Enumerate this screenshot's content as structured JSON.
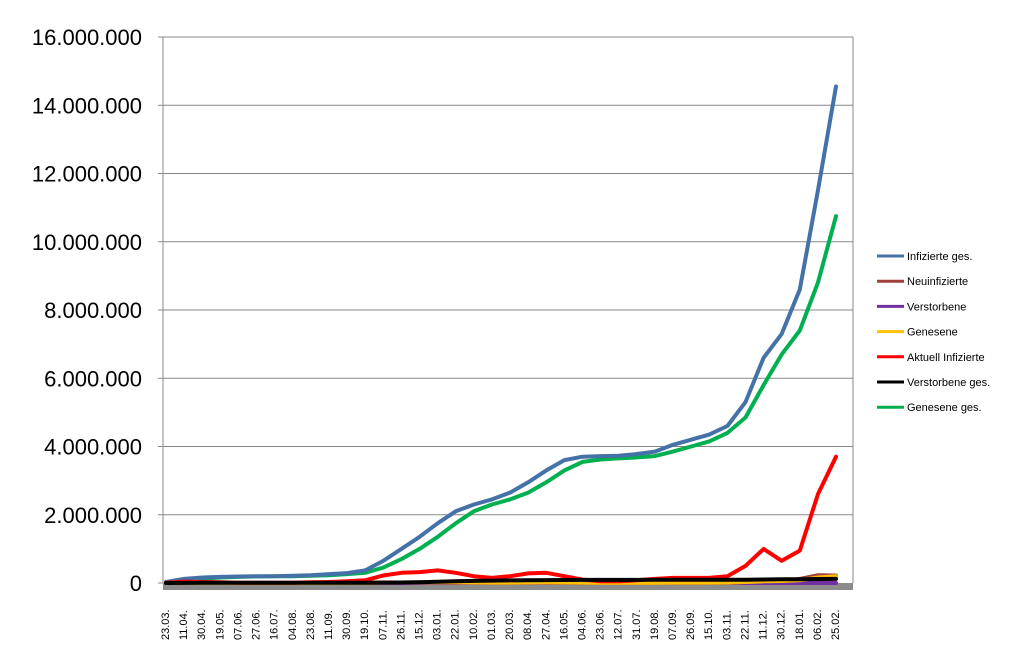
{
  "chart_data": {
    "type": "line",
    "title": "",
    "xlabel": "",
    "ylabel": "",
    "ylim": [
      0,
      16000000
    ],
    "yticks": [
      "0",
      "2.000.000",
      "4.000.000",
      "6.000.000",
      "8.000.000",
      "10.000.000",
      "12.000.000",
      "14.000.000",
      "16.000.000"
    ],
    "grid": "horizontal",
    "legend_position": "right",
    "categories": [
      "23.03.",
      "11.04.",
      "30.04.",
      "19.05.",
      "07.06.",
      "27.06.",
      "16.07.",
      "04.08.",
      "23.08.",
      "11.09.",
      "30.09.",
      "19.10.",
      "07.11.",
      "26.11.",
      "15.12.",
      "03.01.",
      "22.01.",
      "10.02.",
      "01.03.",
      "20.03.",
      "08.04.",
      "27.04.",
      "16.05.",
      "04.06.",
      "23.06.",
      "12.07.",
      "31.07.",
      "19.08.",
      "07.09.",
      "26.09.",
      "15.10.",
      "03.11.",
      "22.11.",
      "11.12.",
      "30.12.",
      "18.01.",
      "06.02.",
      "25.02."
    ],
    "series": [
      {
        "name": "Infizierte ges.",
        "color": "#4472A8",
        "values": [
          30000,
          120000,
          160000,
          180000,
          190000,
          200000,
          200000,
          210000,
          230000,
          260000,
          290000,
          370000,
          650000,
          1000000,
          1350000,
          1750000,
          2100000,
          2300000,
          2450000,
          2650000,
          2950000,
          3300000,
          3600000,
          3700000,
          3720000,
          3730000,
          3780000,
          3850000,
          4050000,
          4200000,
          4350000,
          4600000,
          5300000,
          6600000,
          7300000,
          8600000,
          11500000,
          14550000
        ]
      },
      {
        "name": "Neuinfizierte",
        "color": "#A0403A",
        "values": [
          3000,
          3000,
          1000,
          500,
          300,
          400,
          500,
          800,
          1200,
          1500,
          2500,
          8000,
          18000,
          15000,
          20000,
          15000,
          10000,
          8000,
          9000,
          15000,
          18000,
          15000,
          8000,
          3000,
          1000,
          1500,
          4000,
          8000,
          10000,
          9000,
          10000,
          30000,
          50000,
          50000,
          35000,
          120000,
          230000,
          220000
        ]
      },
      {
        "name": "Verstorbene",
        "color": "#7030A0",
        "values": [
          0,
          200,
          100,
          50,
          20,
          10,
          10,
          5,
          5,
          10,
          20,
          50,
          200,
          300,
          500,
          600,
          500,
          300,
          200,
          200,
          250,
          250,
          150,
          80,
          40,
          30,
          20,
          40,
          60,
          80,
          100,
          150,
          300,
          400,
          300,
          250,
          200,
          250
        ]
      },
      {
        "name": "Genesene",
        "color": "#FFC000",
        "values": [
          1000,
          3000,
          3000,
          2000,
          800,
          400,
          400,
          600,
          800,
          1200,
          1500,
          4000,
          12000,
          15000,
          17000,
          18000,
          18000,
          12000,
          8000,
          9000,
          12000,
          14000,
          12000,
          7000,
          3000,
          1500,
          2000,
          4000,
          6000,
          8000,
          8000,
          12000,
          30000,
          50000,
          60000,
          80000,
          160000,
          200000
        ]
      },
      {
        "name": "Aktuell Infizierte",
        "color": "#FF0000",
        "values": [
          10000,
          40000,
          30000,
          20000,
          10000,
          10000,
          10000,
          10000,
          20000,
          30000,
          50000,
          80000,
          220000,
          300000,
          320000,
          370000,
          300000,
          200000,
          150000,
          200000,
          280000,
          300000,
          200000,
          100000,
          50000,
          50000,
          80000,
          120000,
          150000,
          150000,
          150000,
          200000,
          500000,
          1000000,
          650000,
          950000,
          2600000,
          3700000
        ]
      },
      {
        "name": "Verstorbene ges.",
        "color": "#000000",
        "values": [
          500,
          4000,
          6000,
          8000,
          8500,
          9000,
          9100,
          9200,
          9300,
          9400,
          9600,
          10000,
          12000,
          16000,
          22000,
          35000,
          50000,
          62000,
          70000,
          75000,
          80000,
          85000,
          88000,
          90000,
          91000,
          91500,
          92000,
          92500,
          93000,
          93500,
          94000,
          95000,
          98000,
          103000,
          108000,
          112000,
          116000,
          120000
        ]
      },
      {
        "name": "Genesene ges.",
        "color": "#00B050",
        "values": [
          20000,
          80000,
          130000,
          160000,
          180000,
          190000,
          200000,
          200000,
          210000,
          230000,
          260000,
          300000,
          450000,
          700000,
          1000000,
          1350000,
          1750000,
          2100000,
          2300000,
          2450000,
          2650000,
          2950000,
          3300000,
          3550000,
          3620000,
          3650000,
          3680000,
          3720000,
          3850000,
          4000000,
          4150000,
          4400000,
          4850000,
          5800000,
          6700000,
          7400000,
          8800000,
          10750000
        ]
      }
    ]
  }
}
